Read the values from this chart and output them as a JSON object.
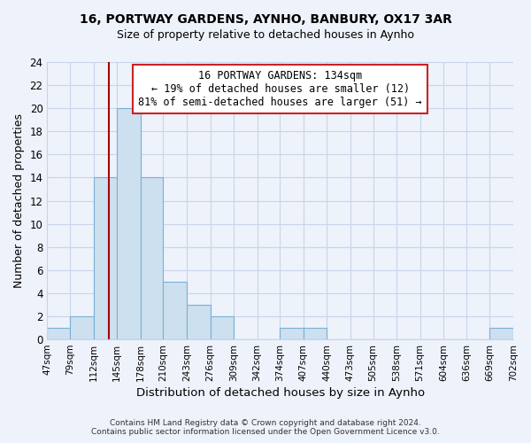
{
  "title": "16, PORTWAY GARDENS, AYNHO, BANBURY, OX17 3AR",
  "subtitle": "Size of property relative to detached houses in Aynho",
  "xlabel": "Distribution of detached houses by size in Aynho",
  "ylabel": "Number of detached properties",
  "bin_edges": [
    47,
    79,
    112,
    145,
    178,
    210,
    243,
    276,
    309,
    342,
    374,
    407,
    440,
    473,
    505,
    538,
    571,
    604,
    636,
    669,
    702
  ],
  "bin_labels": [
    "47sqm",
    "79sqm",
    "112sqm",
    "145sqm",
    "178sqm",
    "210sqm",
    "243sqm",
    "276sqm",
    "309sqm",
    "342sqm",
    "374sqm",
    "407sqm",
    "440sqm",
    "473sqm",
    "505sqm",
    "538sqm",
    "571sqm",
    "604sqm",
    "636sqm",
    "669sqm",
    "702sqm"
  ],
  "counts": [
    1,
    2,
    14,
    20,
    14,
    5,
    3,
    2,
    0,
    0,
    1,
    1,
    0,
    0,
    0,
    0,
    0,
    0,
    0,
    1
  ],
  "bar_color": "#cce0f0",
  "bar_edge_color": "#7ab0d4",
  "property_size": 134,
  "vline_x": 134,
  "vline_color": "#aa0000",
  "annotation_line1": "16 PORTWAY GARDENS: 134sqm",
  "annotation_line2": "← 19% of detached houses are smaller (12)",
  "annotation_line3": "81% of semi-detached houses are larger (51) →",
  "annotation_box_color": "white",
  "annotation_box_edge_color": "#cc2222",
  "ylim": [
    0,
    24
  ],
  "yticks": [
    0,
    2,
    4,
    6,
    8,
    10,
    12,
    14,
    16,
    18,
    20,
    22,
    24
  ],
  "footer_line1": "Contains HM Land Registry data © Crown copyright and database right 2024.",
  "footer_line2": "Contains public sector information licensed under the Open Government Licence v3.0.",
  "background_color": "#eef2fb",
  "grid_color": "#c8d4e8",
  "title_fontsize": 10,
  "subtitle_fontsize": 9
}
